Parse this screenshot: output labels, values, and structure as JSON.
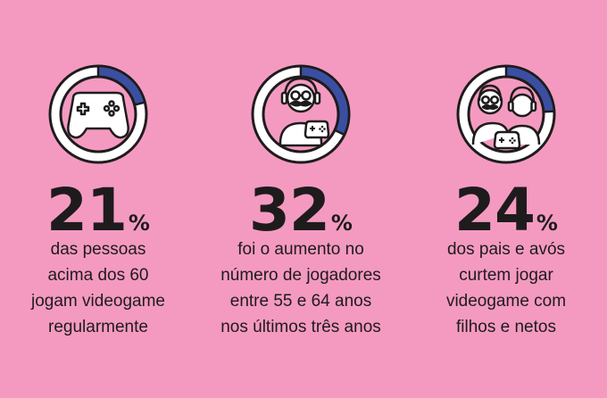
{
  "colors": {
    "background": "#f49ac1",
    "ring_fill": "#3a4fa1",
    "ink": "#1e1b1c",
    "white": "#ffffff"
  },
  "stats": [
    {
      "value": "21",
      "unit": "%",
      "percent": 21,
      "icon": "gamepad-icon",
      "caption": [
        "das pessoas",
        "acima dos 60",
        "jogam videogame",
        "regularmente"
      ]
    },
    {
      "value": "32",
      "unit": "%",
      "percent": 32,
      "icon": "grandpa-gamer-icon",
      "caption": [
        "foi o aumento no",
        "número de jogadores",
        "entre 55 e 64 anos",
        "nos últimos três anos"
      ]
    },
    {
      "value": "24",
      "unit": "%",
      "percent": 24,
      "icon": "grandpa-grandchild-icon",
      "caption": [
        "dos pais e avós",
        "curtem jogar",
        "videogame com",
        "filhos e netos"
      ]
    }
  ]
}
